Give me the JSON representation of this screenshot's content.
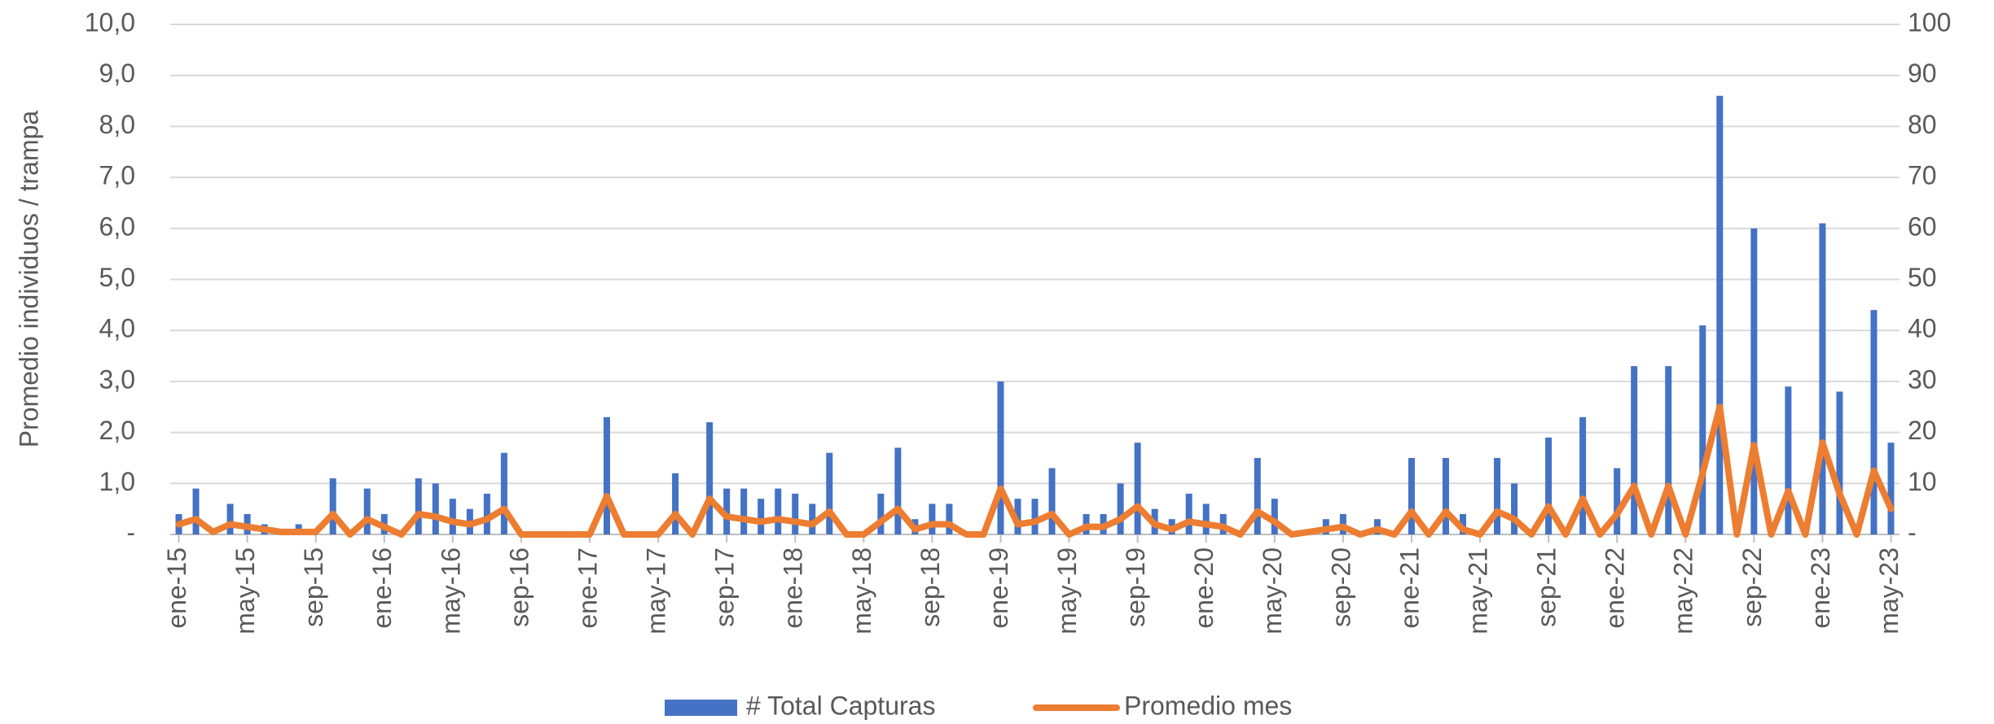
{
  "chart_data": {
    "type": "bar",
    "y_axis_label": "Promedio individuos / trampa",
    "categories": [
      "ene-15",
      null,
      null,
      null,
      "may-15",
      null,
      null,
      null,
      "sep-15",
      null,
      null,
      null,
      "ene-16",
      null,
      null,
      null,
      "may-16",
      null,
      null,
      null,
      "sep-16",
      null,
      null,
      null,
      "ene-17",
      null,
      null,
      null,
      "may-17",
      null,
      null,
      null,
      "sep-17",
      null,
      null,
      null,
      "ene-18",
      null,
      null,
      null,
      "may-18",
      null,
      null,
      null,
      "sep-18",
      null,
      null,
      null,
      "ene-19",
      null,
      null,
      null,
      "may-19",
      null,
      null,
      null,
      "sep-19",
      null,
      null,
      null,
      "ene-20",
      null,
      null,
      null,
      "may-20",
      null,
      null,
      null,
      "sep-20",
      null,
      null,
      null,
      "ene-21",
      null,
      null,
      null,
      "may-21",
      null,
      null,
      null,
      "sep-21",
      null,
      null,
      null,
      "ene-22",
      null,
      null,
      null,
      "may-22",
      null,
      null,
      null,
      "sep-22",
      null,
      null,
      null,
      "ene-23",
      null,
      null,
      null,
      "may-23"
    ],
    "series": [
      {
        "name": "# Total Capturas",
        "type": "bar",
        "axis": "y2",
        "color": "#4472c4",
        "values": [
          4,
          9,
          0,
          6,
          4,
          2,
          0,
          2,
          0,
          11,
          0,
          9,
          4,
          0,
          11,
          10,
          7,
          5,
          8,
          16,
          0,
          0,
          0,
          0,
          0,
          23,
          0,
          0,
          0,
          12,
          0,
          22,
          9,
          9,
          7,
          9,
          8,
          6,
          16,
          0,
          0,
          8,
          17,
          3,
          6,
          6,
          0,
          0,
          30,
          7,
          7,
          13,
          0,
          4,
          4,
          10,
          18,
          5,
          3,
          8,
          6,
          4,
          0,
          15,
          7,
          0,
          0,
          3,
          4,
          0,
          3,
          0,
          15,
          0,
          15,
          4,
          0,
          15,
          10,
          0,
          19,
          0,
          23,
          0,
          13,
          33,
          0,
          33,
          0,
          41,
          86,
          0,
          60,
          0,
          29,
          0,
          61,
          28,
          0,
          44,
          18
        ]
      },
      {
        "name": "Promedio mes",
        "type": "line",
        "color": "#ed7d31",
        "values": [
          0.2,
          0.3,
          0.05,
          0.2,
          0.15,
          0.1,
          0.05,
          0.05,
          0.05,
          0.4,
          0,
          0.3,
          0.15,
          0,
          0.4,
          0.35,
          0.25,
          0.2,
          0.3,
          0.5,
          0,
          0,
          0,
          0,
          0,
          0.75,
          0,
          0,
          0,
          0.4,
          0,
          0.7,
          0.35,
          0.3,
          0.25,
          0.3,
          0.25,
          0.2,
          0.45,
          0,
          0,
          0.25,
          0.5,
          0.1,
          0.2,
          0.2,
          0,
          0,
          0.9,
          0.2,
          0.25,
          0.4,
          0,
          0.15,
          0.15,
          0.3,
          0.55,
          0.2,
          0.1,
          0.25,
          0.2,
          0.15,
          0,
          0.45,
          0.25,
          0,
          0.05,
          0.1,
          0.15,
          0,
          0.1,
          0,
          0.45,
          0,
          0.45,
          0.1,
          0,
          0.45,
          0.3,
          0,
          0.55,
          0,
          0.7,
          0,
          0.4,
          0.95,
          0,
          0.95,
          0,
          1.2,
          2.5,
          0,
          1.75,
          0,
          0.85,
          0,
          1.8,
          0.8,
          0,
          1.25,
          0.5
        ]
      }
    ],
    "ylim": [
      0,
      10
    ],
    "yticks": [
      {
        "value": 0,
        "label": "-"
      },
      {
        "value": 1,
        "label": "1,0"
      },
      {
        "value": 2,
        "label": "2,0"
      },
      {
        "value": 3,
        "label": "3,0"
      },
      {
        "value": 4,
        "label": "4,0"
      },
      {
        "value": 5,
        "label": "5,0"
      },
      {
        "value": 6,
        "label": "6,0"
      },
      {
        "value": 7,
        "label": "7,0"
      },
      {
        "value": 8,
        "label": "8,0"
      },
      {
        "value": 9,
        "label": "9,0"
      },
      {
        "value": 10,
        "label": "10,0"
      }
    ],
    "y2lim": [
      0,
      100
    ],
    "y2ticks": [
      {
        "value": 0,
        "label": "-"
      },
      10,
      20,
      30,
      40,
      50,
      60,
      70,
      80,
      90,
      100
    ],
    "grid": true
  }
}
